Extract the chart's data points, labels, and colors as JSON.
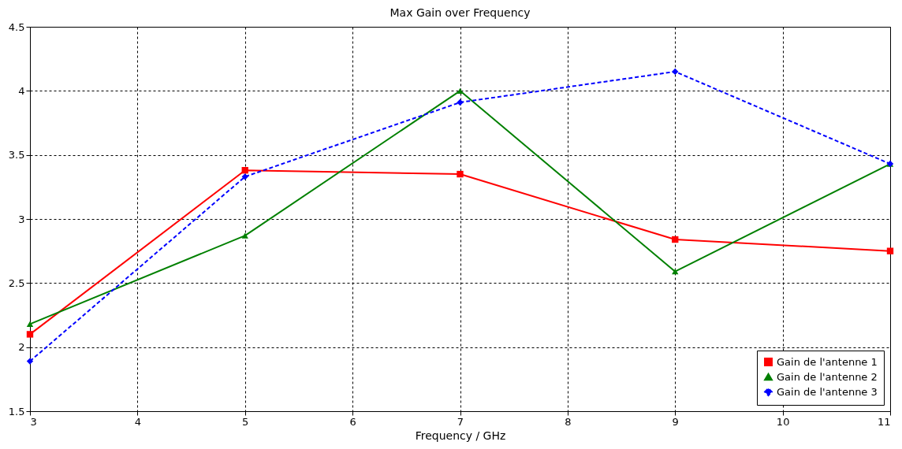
{
  "chart_data": {
    "type": "line",
    "title": "Max Gain over Frequency",
    "xlabel": "Frequency / GHz",
    "x": [
      3,
      5,
      7,
      9,
      11
    ],
    "series": [
      {
        "name": "Gain de l'antenne 1",
        "color": "#ff0000",
        "values": [
          2.1,
          3.38,
          3.35,
          2.84,
          2.75
        ],
        "marker": "square",
        "line_style": "solid"
      },
      {
        "name": "Gain de l'antenne 2",
        "color": "#008000",
        "values": [
          2.18,
          2.87,
          4.0,
          2.59,
          3.43
        ],
        "marker": "triangle",
        "line_style": "solid"
      },
      {
        "name": "Gain de l'antenne 3",
        "color": "#0000ff",
        "values": [
          1.89,
          3.33,
          3.91,
          4.15,
          3.43
        ],
        "marker": "diamond",
        "line_style": "dashed"
      }
    ],
    "xlim": [
      3,
      11
    ],
    "xticks": [
      3,
      4,
      5,
      6,
      7,
      8,
      9,
      10,
      11
    ],
    "ylim": [
      1.5,
      4.5
    ],
    "yticks": [
      1.5,
      2,
      2.5,
      3,
      3.5,
      4,
      4.5
    ],
    "grid": true,
    "legend": "bottom right"
  }
}
